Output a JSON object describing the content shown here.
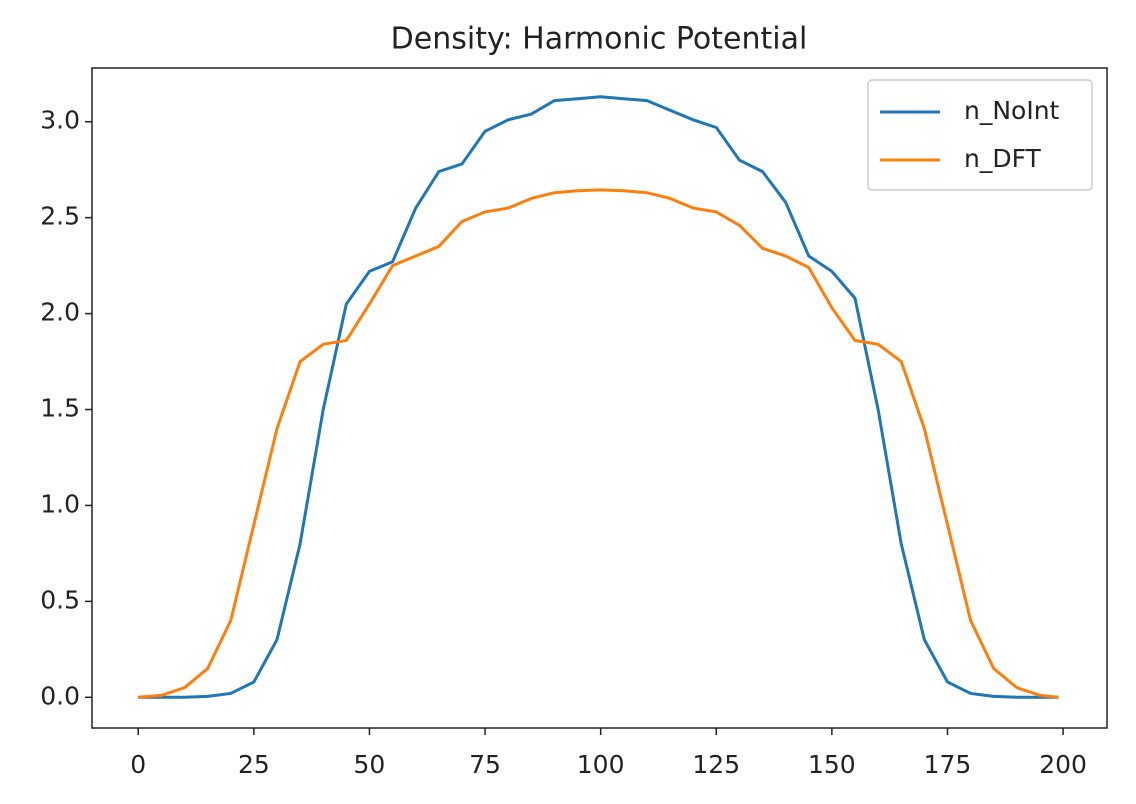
{
  "chart_data": {
    "type": "line",
    "title": "Density: Harmonic Potential",
    "x": [
      0,
      5,
      10,
      15,
      20,
      25,
      30,
      35,
      40,
      45,
      50,
      55,
      60,
      65,
      70,
      75,
      80,
      85,
      90,
      95,
      100,
      105,
      110,
      115,
      120,
      125,
      130,
      135,
      140,
      145,
      150,
      155,
      160,
      165,
      170,
      175,
      180,
      185,
      190,
      195,
      199
    ],
    "series": [
      {
        "name": "n_NoInt",
        "color": "#1f77b4",
        "values": [
          0,
          0,
          0,
          0.005,
          0.02,
          0.08,
          0.3,
          0.8,
          1.5,
          2.05,
          2.22,
          2.27,
          2.55,
          2.74,
          2.78,
          2.95,
          3.01,
          3.04,
          3.11,
          3.12,
          3.13,
          3.12,
          3.11,
          3.06,
          3.01,
          2.97,
          2.8,
          2.74,
          2.58,
          2.3,
          2.22,
          2.08,
          1.5,
          0.8,
          0.3,
          0.08,
          0.02,
          0.005,
          0,
          0,
          0
        ]
      },
      {
        "name": "n_DFT",
        "color": "#ff7f0e",
        "values": [
          0,
          0.01,
          0.05,
          0.15,
          0.4,
          0.9,
          1.4,
          1.75,
          1.84,
          1.86,
          2.05,
          2.25,
          2.3,
          2.35,
          2.48,
          2.53,
          2.55,
          2.6,
          2.63,
          2.64,
          2.645,
          2.64,
          2.63,
          2.6,
          2.55,
          2.53,
          2.46,
          2.34,
          2.3,
          2.24,
          2.03,
          1.86,
          1.84,
          1.75,
          1.4,
          0.9,
          0.4,
          0.15,
          0.05,
          0.01,
          0
        ]
      }
    ],
    "xlim": [
      -10,
      209.5
    ],
    "ylim": [
      -0.16,
      3.28
    ],
    "xticks": [
      0,
      25,
      50,
      75,
      100,
      125,
      150,
      175,
      200
    ],
    "yticks": [
      {
        "value": 0,
        "label": "0.0"
      },
      {
        "value": 0.5,
        "label": "0.5"
      },
      {
        "value": 1,
        "label": "1.0"
      },
      {
        "value": 1.5,
        "label": "1.5"
      },
      {
        "value": 2,
        "label": "2.0"
      },
      {
        "value": 2.5,
        "label": "2.5"
      },
      {
        "value": 3,
        "label": "3.0"
      }
    ],
    "legend": "upper right",
    "grid": false
  }
}
